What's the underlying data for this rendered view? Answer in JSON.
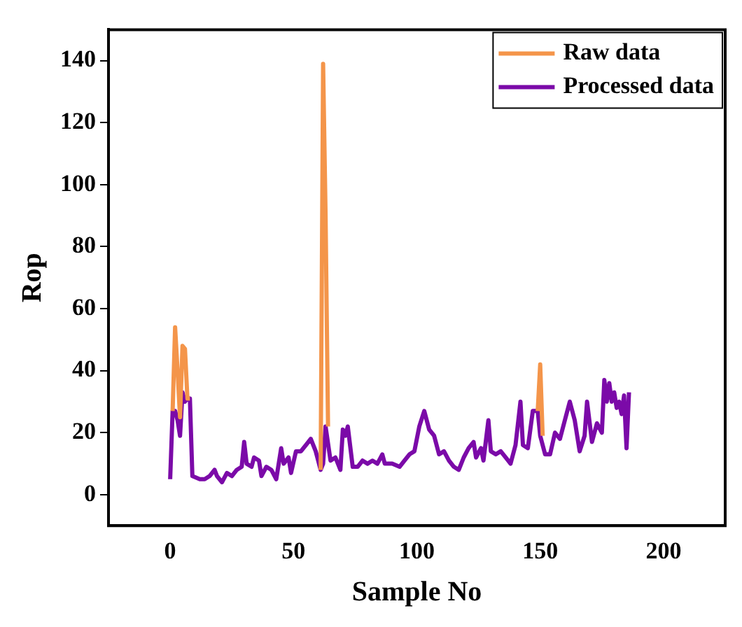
{
  "chart_data": {
    "type": "line",
    "xlabel": "Sample No",
    "ylabel": "Rop",
    "xlim": [
      -25,
      225
    ],
    "xticks": [
      0,
      50,
      100,
      150,
      200
    ],
    "ylim": [
      -10,
      150
    ],
    "yticks": [
      0,
      20,
      40,
      60,
      80,
      100,
      120,
      140
    ],
    "grid": false,
    "legend": "top right",
    "marker": "none",
    "line_style": "solid",
    "series": [
      {
        "name": "Raw data",
        "color": "#f4954a",
        "x": [
          1,
          2,
          3,
          4,
          5,
          6,
          7,
          8,
          9,
          61,
          62,
          63,
          64,
          65,
          149,
          150,
          151
        ],
        "values": [
          27,
          54,
          40,
          25,
          48,
          47,
          31,
          31,
          null,
          8,
          139,
          90,
          22,
          null,
          27,
          42,
          19
        ]
      },
      {
        "name": "Processed data",
        "color": "#7b0aa8",
        "x": [
          0,
          1,
          2,
          3,
          4,
          5,
          6,
          7,
          8,
          9,
          12,
          14,
          16,
          18,
          19,
          21,
          23,
          25,
          27,
          29,
          30,
          31,
          33,
          34,
          36,
          37,
          39,
          41,
          43,
          45,
          46,
          48,
          49,
          51,
          53,
          55,
          57,
          59,
          61,
          62,
          63,
          65,
          67,
          69,
          70,
          71,
          72,
          74,
          76,
          78,
          80,
          82,
          84,
          86,
          87,
          90,
          93,
          95,
          97,
          99,
          101,
          103,
          105,
          107,
          109,
          111,
          113,
          115,
          117,
          119,
          121,
          123,
          124,
          126,
          127,
          129,
          130,
          132,
          134,
          136,
          138,
          140,
          142,
          143,
          145,
          147,
          149,
          150,
          152,
          154,
          156,
          158,
          160,
          162,
          164,
          166,
          168,
          169,
          171,
          173,
          175,
          176,
          177,
          178,
          179,
          180,
          181,
          182,
          183,
          184,
          185,
          186
        ],
        "values": [
          5,
          27,
          27,
          24,
          19,
          33,
          30,
          31,
          31,
          6,
          5,
          5,
          6,
          8,
          6,
          4,
          7,
          6,
          8,
          9,
          17,
          10,
          9,
          12,
          11,
          6,
          9,
          8,
          5,
          15,
          10,
          12,
          7,
          14,
          14,
          16,
          18,
          14,
          8,
          10,
          22,
          11,
          12,
          8,
          21,
          19,
          22,
          9,
          9,
          11,
          10,
          11,
          10,
          13,
          10,
          10,
          9,
          11,
          13,
          14,
          22,
          27,
          21,
          19,
          13,
          14,
          11,
          9,
          8,
          12,
          15,
          17,
          12,
          15,
          11,
          24,
          14,
          13,
          14,
          12,
          10,
          16,
          30,
          16,
          15,
          27,
          27,
          19,
          13,
          13,
          20,
          18,
          24,
          30,
          24,
          14,
          19,
          30,
          17,
          23,
          20,
          37,
          30,
          36,
          30,
          33,
          28,
          30,
          26,
          32,
          15,
          33
        ]
      }
    ]
  }
}
